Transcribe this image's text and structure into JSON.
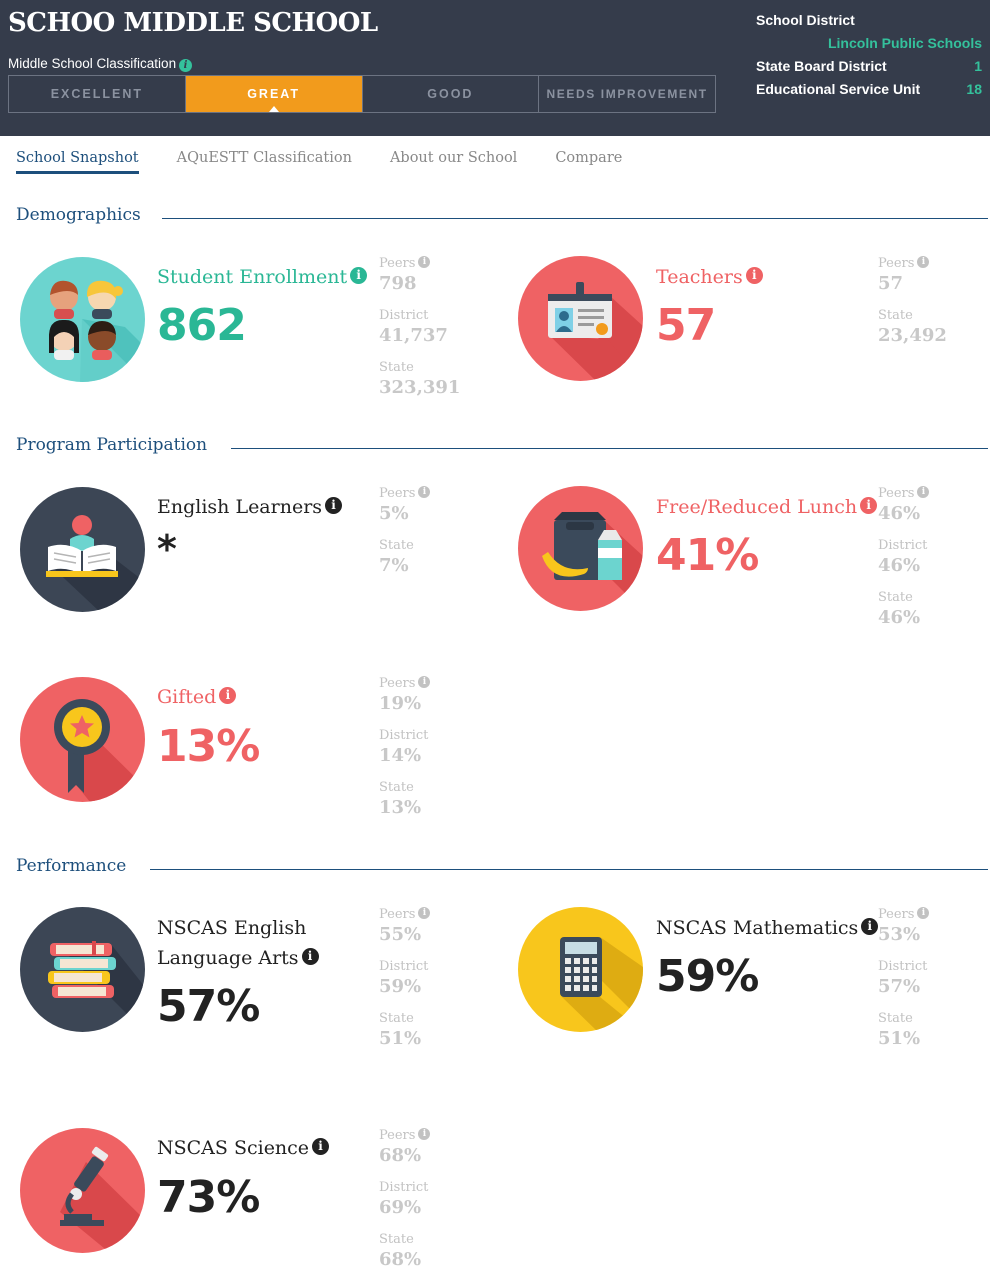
{
  "header": {
    "school_name": "SCHOO MIDDLE SCHOOL",
    "classification_label": "Middle School Classification",
    "ratings": [
      "EXCELLENT",
      "GREAT",
      "GOOD",
      "NEEDS IMPROVEMENT"
    ],
    "active_rating": "GREAT",
    "district": {
      "school_district_label": "School District",
      "school_district_value": "Lincoln Public Schools",
      "state_board_label": "State Board District",
      "state_board_value": "1",
      "esu_label": "Educational Service Unit",
      "esu_value": "18"
    }
  },
  "tabs": [
    "School Snapshot",
    "AQuESTT Classification",
    "About our School",
    "Compare"
  ],
  "active_tab": "School Snapshot",
  "sections": {
    "demographics": "Demographics",
    "program": "Program Participation",
    "performance": "Performance"
  },
  "labels": {
    "peers": "Peers",
    "district": "District",
    "state": "State"
  },
  "metrics": {
    "enrollment": {
      "title": "Student Enrollment",
      "value": "862",
      "peers": "798",
      "district": "41,737",
      "state": "323,391"
    },
    "teachers": {
      "title": "Teachers",
      "value": "57",
      "peers": "57",
      "state": "23,492"
    },
    "english_learners": {
      "title": "English Learners",
      "value": "*",
      "peers": "5%",
      "state": "7%"
    },
    "lunch": {
      "title": "Free/Reduced Lunch",
      "value": "41%",
      "peers": "46%",
      "district": "46%",
      "state": "46%"
    },
    "gifted": {
      "title": "Gifted",
      "value": "13%",
      "peers": "19%",
      "district": "14%",
      "state": "13%"
    },
    "ela": {
      "title_line1": "NSCAS English",
      "title_line2": "Language Arts",
      "value": "57%",
      "peers": "55%",
      "district": "59%",
      "state": "51%"
    },
    "math": {
      "title": "NSCAS Mathematics",
      "value": "59%",
      "peers": "53%",
      "district": "57%",
      "state": "51%"
    },
    "science": {
      "title": "NSCAS Science",
      "value": "73%",
      "peers": "68%",
      "district": "69%",
      "state": "68%"
    }
  },
  "icons": {
    "enrollment": "students-icon",
    "teachers": "id-badge-icon",
    "english_learners": "reading-book-icon",
    "lunch": "lunch-bag-icon",
    "gifted": "award-ribbon-icon",
    "ela": "book-stack-icon",
    "math": "calculator-icon",
    "science": "microscope-icon"
  },
  "colors": {
    "header_bg": "#353c4b",
    "accent_orange": "#f29b1c",
    "teal": "#2ab795",
    "coral": "#ef6264",
    "navy": "#1d4f7c",
    "yellow": "#f8c61c",
    "dark_circle": "#3c4655"
  }
}
